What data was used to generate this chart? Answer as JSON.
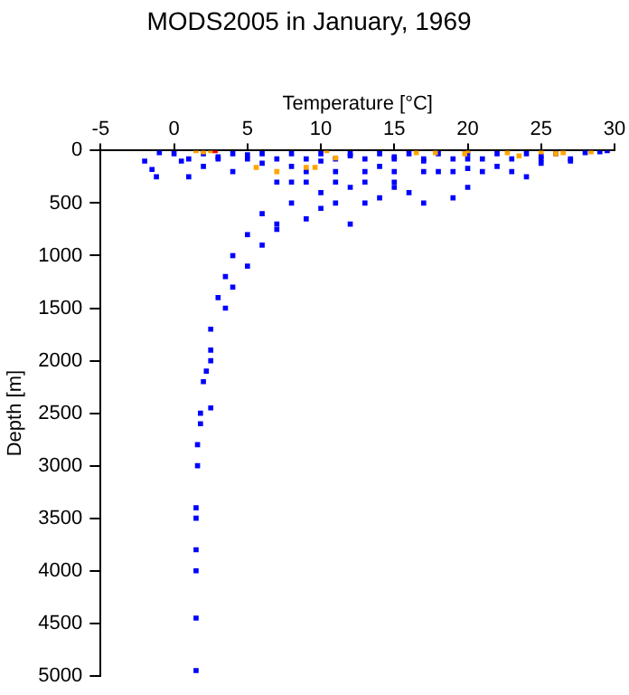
{
  "chart_data": {
    "type": "scatter",
    "title": "MODS2005 in January, 1969",
    "xlabel": "Temperature [°C]",
    "ylabel": "Depth [m]",
    "xlim": [
      -5,
      30
    ],
    "xticks": [
      -5,
      0,
      5,
      10,
      15,
      20,
      25,
      30
    ],
    "ylim": [
      5000,
      0
    ],
    "yticks": [
      0,
      500,
      1000,
      1500,
      2000,
      2500,
      3000,
      3500,
      4000,
      4500,
      5000
    ],
    "grid": false,
    "legend": false,
    "marker": "square",
    "series": [
      {
        "color": "#0000ff",
        "x": [
          0,
          2,
          4,
          6,
          8,
          10,
          12,
          14,
          16,
          18,
          20,
          22,
          24,
          26,
          1,
          3,
          5,
          7,
          9,
          11,
          13,
          15,
          17,
          19,
          21,
          23,
          25,
          27,
          9,
          11,
          13,
          15,
          17,
          19,
          21,
          23,
          7,
          9,
          11,
          13,
          15,
          -1,
          -2,
          -1.5,
          -1.2,
          0.5,
          1,
          2,
          3,
          4,
          5,
          6,
          8,
          10,
          12,
          14,
          15,
          17,
          20,
          22,
          25,
          27,
          28,
          29,
          29.5,
          25,
          20,
          18,
          15,
          12,
          10,
          8,
          16,
          20,
          24,
          14,
          11,
          8,
          10,
          13,
          17,
          19,
          6,
          7,
          9,
          12,
          5,
          6,
          7,
          4,
          5,
          3.5,
          4,
          3,
          3.5,
          2.5,
          2.5,
          2.5,
          2.2,
          2,
          2.5,
          1.8,
          1.8,
          1.6,
          1.6,
          1.5,
          1.5,
          1.5,
          1.5,
          1.5,
          1.5
        ],
        "values": [
          30,
          30,
          30,
          30,
          30,
          30,
          30,
          30,
          30,
          30,
          30,
          30,
          30,
          30,
          80,
          80,
          80,
          80,
          80,
          80,
          80,
          80,
          80,
          80,
          80,
          80,
          80,
          80,
          200,
          200,
          200,
          200,
          200,
          200,
          200,
          200,
          300,
          300,
          300,
          300,
          350,
          20,
          100,
          180,
          250,
          100,
          250,
          150,
          60,
          200,
          40,
          120,
          150,
          100,
          50,
          150,
          60,
          100,
          80,
          150,
          50,
          100,
          20,
          10,
          0,
          120,
          170,
          200,
          300,
          350,
          400,
          300,
          400,
          350,
          250,
          450,
          500,
          500,
          550,
          500,
          500,
          450,
          600,
          700,
          650,
          700,
          800,
          900,
          750,
          1000,
          1100,
          1200,
          1300,
          1400,
          1500,
          1700,
          1900,
          2000,
          2100,
          2200,
          2450,
          2500,
          2600,
          2800,
          3000,
          3400,
          3500,
          3800,
          4000,
          4450,
          4950
        ]
      },
      {
        "color": "#ffa500",
        "x": [
          1.5,
          2,
          2.5,
          10.4,
          11,
          5.6,
          7,
          9,
          9.6,
          16.5,
          17.8,
          19.8,
          20,
          22.7,
          23.5,
          25,
          26.5,
          28.4,
          26
        ],
        "values": [
          0,
          10,
          0,
          0,
          70,
          160,
          200,
          160,
          160,
          20,
          20,
          30,
          0,
          20,
          50,
          10,
          20,
          10,
          30
        ]
      },
      {
        "color": "#ff0000",
        "x": [
          2.8
        ],
        "values": [
          0
        ]
      }
    ]
  }
}
